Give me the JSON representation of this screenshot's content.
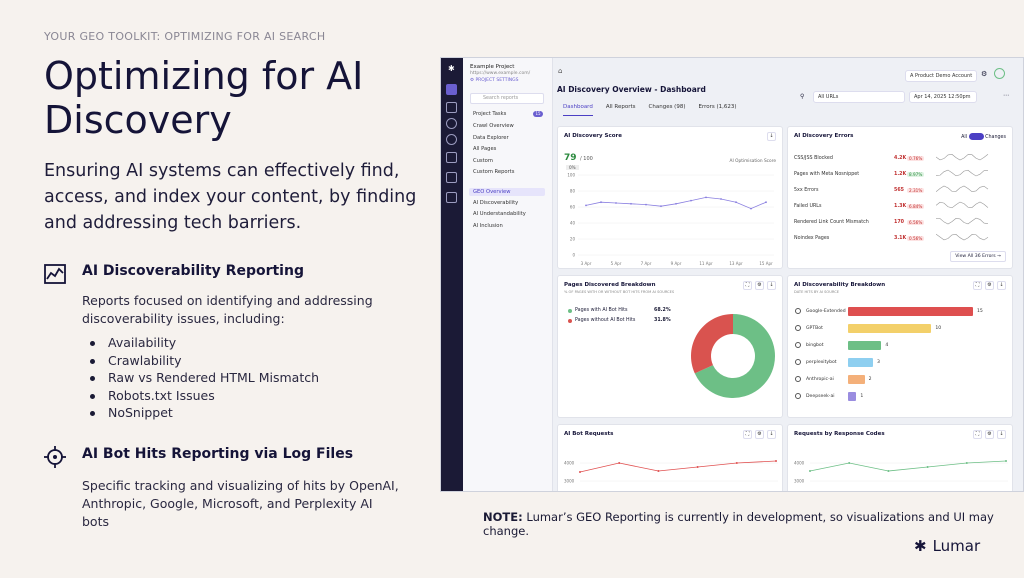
{
  "eyebrow": "YOUR GEO TOOLKIT: OPTIMIZING FOR AI SEARCH",
  "title": "Optimizing for AI Discovery",
  "lede": "Ensuring AI systems can effectively find, access, and index your content, by finding and addressing tech barriers.",
  "section1": {
    "title": "AI Discoverability Reporting",
    "desc": "Reports focused on identifying and addressing discoverability issues, including:",
    "items": [
      "Availability",
      "Crawlability",
      "Raw vs Rendered HTML Mismatch",
      "Robots.txt Issues",
      "NoSnippet"
    ]
  },
  "section2": {
    "title": "AI Bot Hits Reporting via Log Files",
    "desc": "Specific tracking and visualizing of hits by OpenAI, Anthropic, Google, Microsoft, and Perplexity AI bots"
  },
  "note": {
    "label": "NOTE:",
    "text": " Lumar’s GEO Reporting is currently in development, so visualizations and UI may change."
  },
  "brand": "Lumar",
  "app": {
    "nav": {
      "project": "Example Project",
      "url": "https://www.example.com/",
      "settings": "⚙ PROJECT SETTINGS",
      "search": "Search reports",
      "badge": "15",
      "items": [
        "Project Tasks",
        "Crawl Overview",
        "Data Explorer",
        "All Pages",
        "Custom",
        "Custom Reports",
        "GEO Overview",
        "AI Discoverability",
        "AI Understandability",
        "AI Inclusion"
      ]
    },
    "title": "AI Discovery Overview - Dashboard",
    "tabs": [
      "Dashboard",
      "All Reports",
      "Changes (98)",
      "Errors (1,623)"
    ],
    "account": "A Product Demo Account",
    "filter": "All URLs",
    "date": "Apr 14, 2025 12:50pm",
    "score": {
      "title": "AI Discovery Score",
      "value": "79",
      "max": "/ 100",
      "delta": "0%",
      "legend": "AI Optimisation Score",
      "xticks": [
        "3 Apr",
        "5 Apr",
        "7 Apr",
        "9 Apr",
        "11 Apr",
        "13 Apr",
        "15 Apr"
      ],
      "yticks": [
        "100",
        "80",
        "60",
        "40",
        "20",
        "0"
      ]
    },
    "errors": {
      "title": "AI Discovery Errors",
      "toggle_all": "All",
      "toggle_changes": "Changes",
      "rows": [
        {
          "name": "CSS/JSS Blocked",
          "v": "4.2K",
          "p": "0.76%"
        },
        {
          "name": "Pages with Meta Nosnippet",
          "v": "1.2K",
          "p": "8.97%",
          "good": true
        },
        {
          "name": "5xx Errors",
          "v": "565",
          "p": "2.31%"
        },
        {
          "name": "Failed URLs",
          "v": "1.3K",
          "p": "6.84%"
        },
        {
          "name": "Rendered Link Count Mismatch",
          "v": "170",
          "p": "6.56%"
        },
        {
          "name": "Noindex Pages",
          "v": "3.1K",
          "p": "0.56%"
        }
      ],
      "view_all": "View All 36 Errors"
    },
    "pages": {
      "title": "Pages Discovered Breakdown",
      "sub": "% OF PAGES WITH OR WITHOUT BOT HITS FROM AI SOURCES",
      "rows": [
        {
          "label": "Pages with AI Bot Hits",
          "value": "68.2%",
          "color": "#6dbf86"
        },
        {
          "label": "Pages without AI Bot Hits",
          "value": "31.8%",
          "color": "#d9534f"
        }
      ]
    },
    "disc": {
      "title": "AI Discoverability Breakdown",
      "sub": "DATE HITS BY AI SOURCE",
      "rows": [
        {
          "label": "Google-Extended",
          "value": "15",
          "color": "#de4f4f"
        },
        {
          "label": "GPTBot",
          "value": "10",
          "color": "#f3d06a"
        },
        {
          "label": "bingbot",
          "value": "4",
          "color": "#6dbf86"
        },
        {
          "label": "perplexitybot",
          "value": "3",
          "color": "#8ecff0"
        },
        {
          "label": "Anthropic-ai",
          "value": "2",
          "color": "#f4b07a"
        },
        {
          "label": "Deepseek-ai",
          "value": "1",
          "color": "#9a8de0"
        }
      ]
    },
    "hits": {
      "title": "AI Bot Requests",
      "yticks": [
        "4000",
        "3000"
      ]
    },
    "codes": {
      "title": "Requests by Response Codes",
      "yticks": [
        "4000",
        "3000"
      ]
    }
  }
}
